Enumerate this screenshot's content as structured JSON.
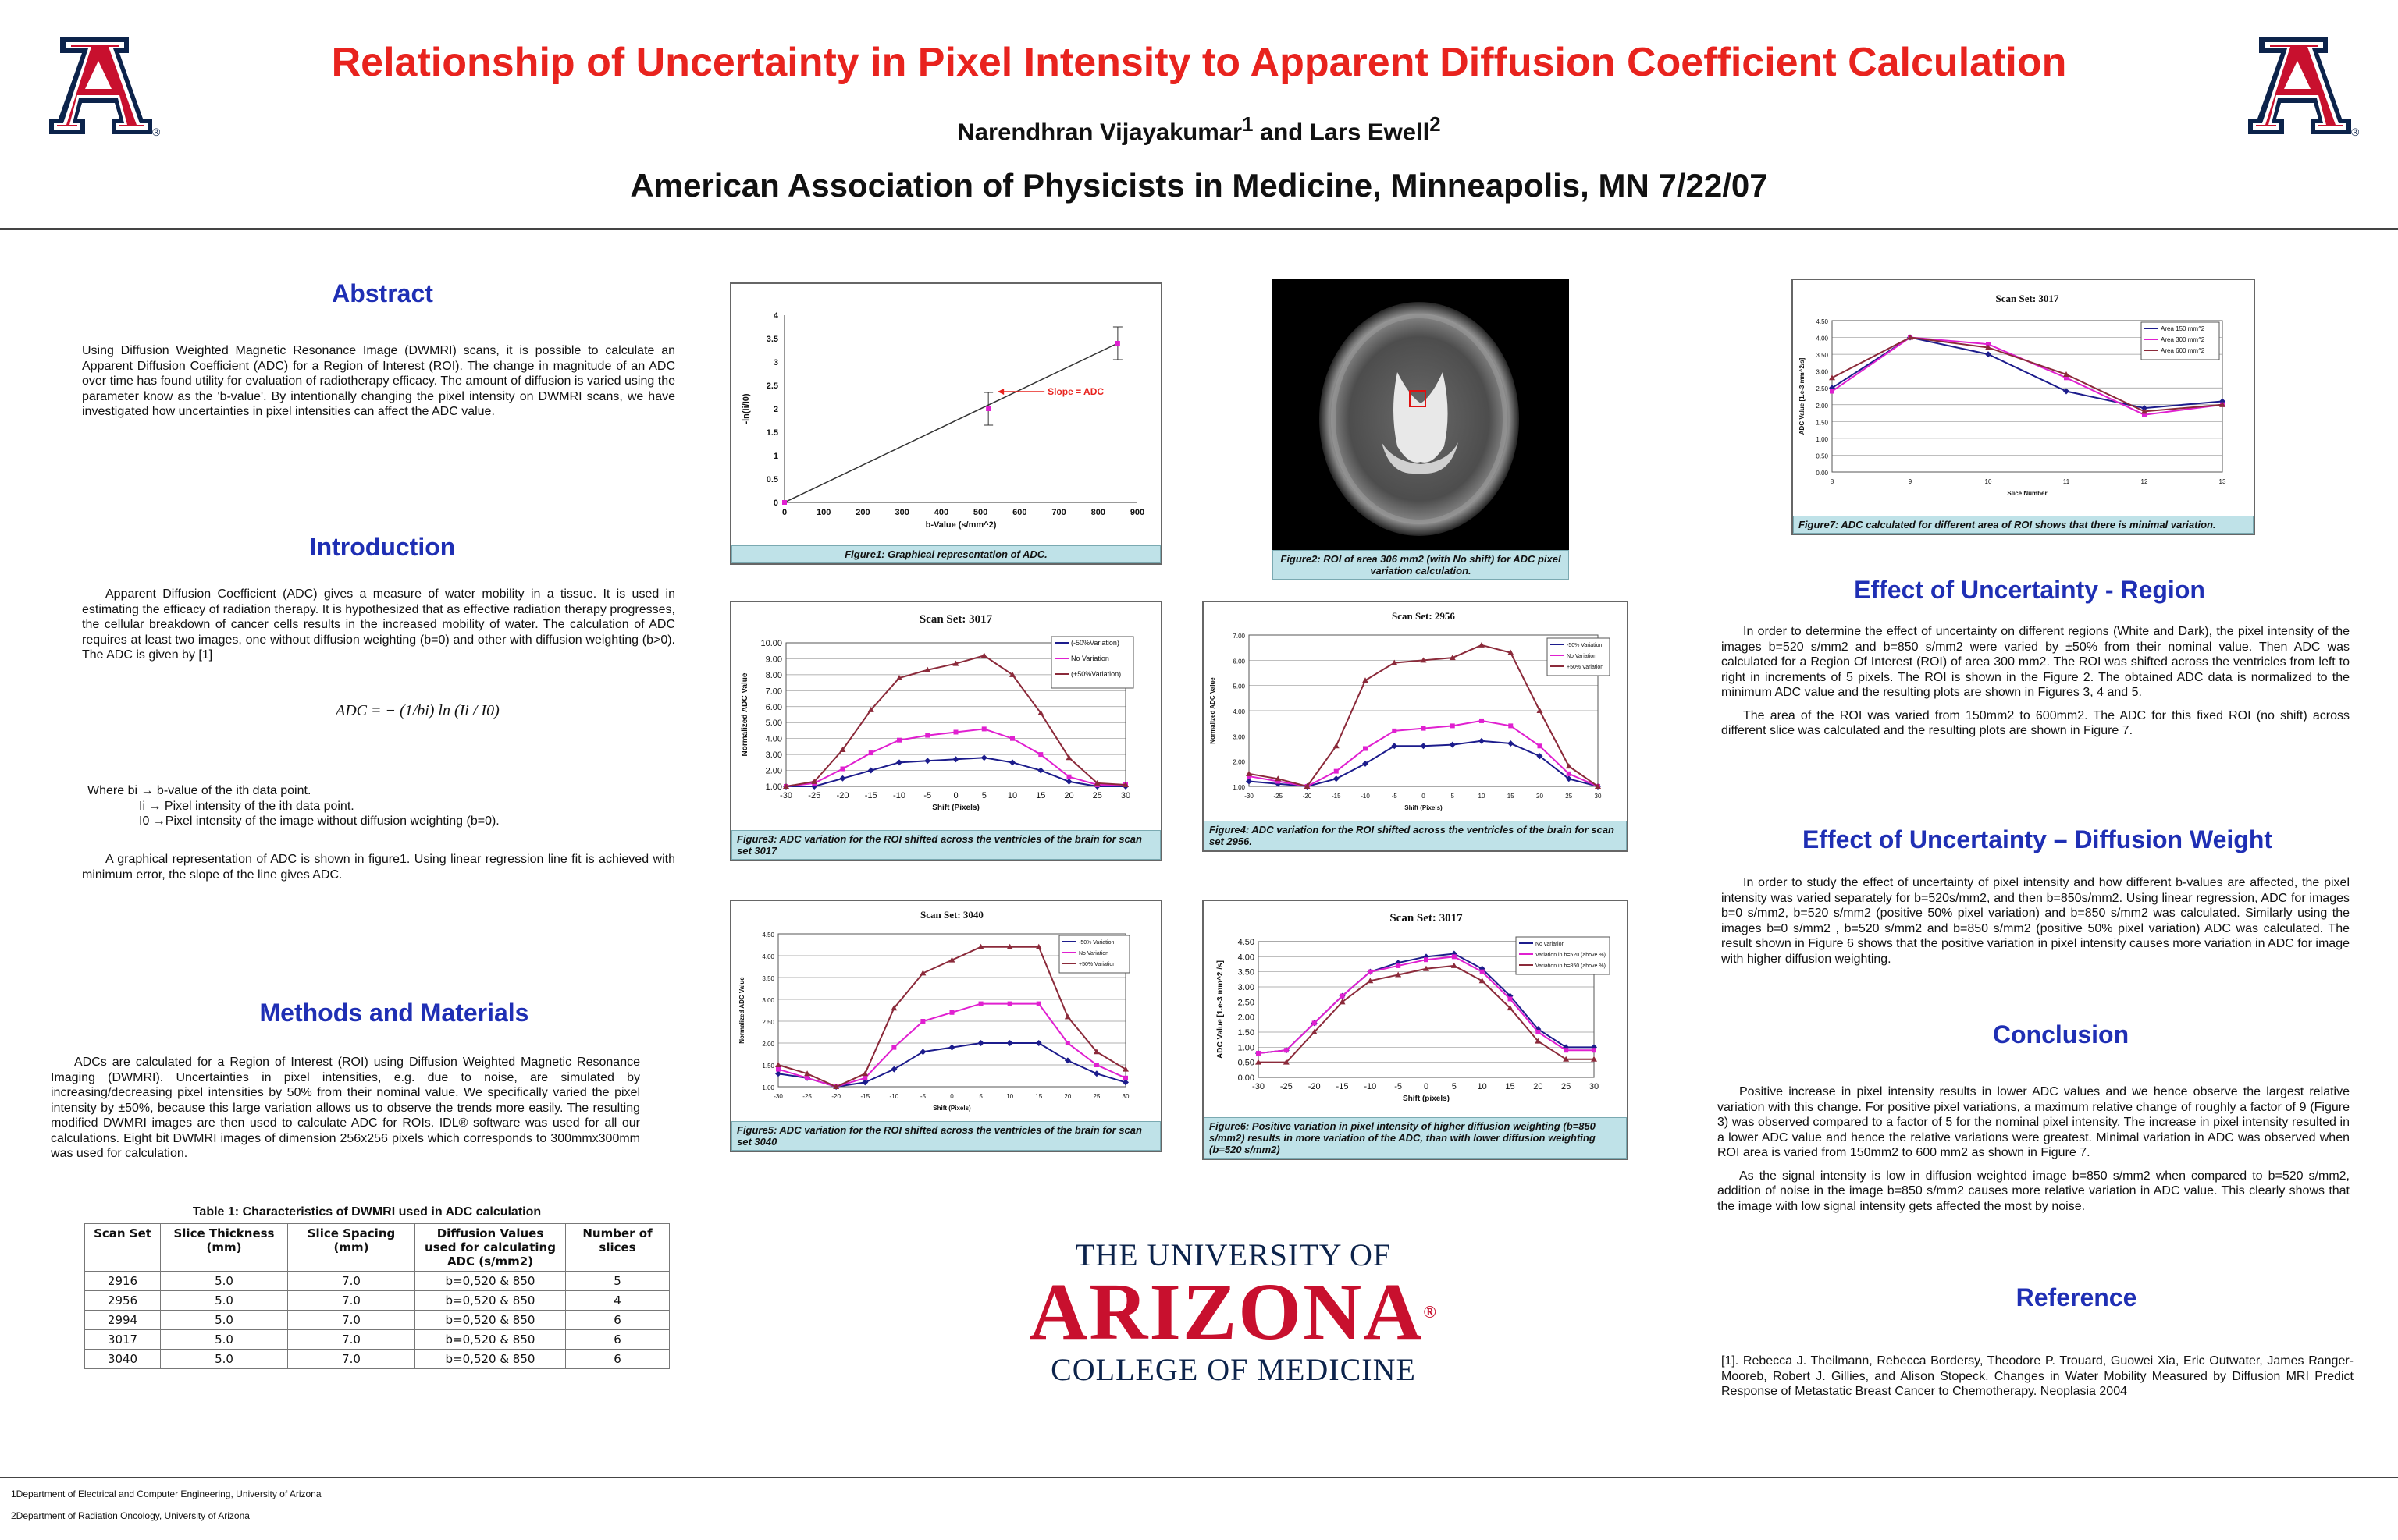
{
  "header": {
    "title": "Relationship of Uncertainty in Pixel Intensity to Apparent Diffusion Coefficient Calculation",
    "authors_a": "Narendhran Vijayakumar",
    "authors_sup1": "1",
    "authors_mid": " and Lars Ewell",
    "authors_sup2": "2",
    "conference": "American Association of Physicists in Medicine, Minneapolis, MN 7/22/07"
  },
  "abstract": {
    "heading": "Abstract",
    "text": "Using Diffusion Weighted Magnetic Resonance Image (DWMRI) scans, it is possible to calculate an Apparent Diffusion Coefficient (ADC) for a Region of Interest (ROI). The change in magnitude of an ADC over time has found utility for evaluation of radiotherapy efficacy. The amount of diffusion is varied using the parameter know as the 'b-value'. By intentionally changing the pixel intensity on DWMRI scans, we have investigated how uncertainties in pixel intensities can affect the ADC value."
  },
  "introduction": {
    "heading": "Introduction",
    "p1": "Apparent Diffusion Coefficient (ADC) gives a measure of water mobility in a tissue. It is used in estimating the efficacy of radiation therapy. It is hypothesized that as effective radiation therapy progresses, the cellular breakdown of cancer cells results in the increased mobility of water. The calculation of ADC requires at least two images, one without diffusion weighting (b=0) and other with diffusion weighting (b>0). The ADC is given by [1]",
    "formula": "ADC = − (1/bi) ln (Ii / I0)",
    "where1": "Where   bi → b-value of the ith data point.",
    "where2": "Ii → Pixel intensity of the ith data point.",
    "where3": "I0 →Pixel intensity of the image without diffusion weighting (b=0).",
    "p2": "A graphical representation of ADC is shown in figure1. Using linear regression line fit is achieved with minimum error, the slope of the line gives ADC."
  },
  "methods": {
    "heading": "Methods and Materials",
    "text": "ADCs are calculated for a Region of Interest (ROI) using Diffusion Weighted Magnetic Resonance Imaging (DWMRI). Uncertainties in pixel intensities, e.g. due to noise, are simulated by increasing/decreasing pixel intensities by 50% from their nominal value. We specifically varied the pixel intensity by ±50%, because this large variation allows us to observe the trends more easily. The resulting modified DWMRI images are then used to calculate ADC for ROIs. IDL® software was used for all our calculations. Eight bit DWMRI images of dimension 256x256 pixels which corresponds to 300mmx300mm was used for calculation.",
    "table_caption": "Table 1: Characteristics of DWMRI used in ADC calculation",
    "table_headers": [
      "Scan Set",
      "Slice Thickness (mm)",
      "Slice Spacing (mm)",
      "Diffusion Values used for calculating ADC (s/mm2)",
      "Number of slices"
    ],
    "table_rows": [
      [
        "2916",
        "5.0",
        "7.0",
        "b=0,520 & 850",
        "5"
      ],
      [
        "2956",
        "5.0",
        "7.0",
        "b=0,520 & 850",
        "4"
      ],
      [
        "2994",
        "5.0",
        "7.0",
        "b=0,520 & 850",
        "6"
      ],
      [
        "3017",
        "5.0",
        "7.0",
        "b=0,520 & 850",
        "6"
      ],
      [
        "3040",
        "5.0",
        "7.0",
        "b=0,520 & 850",
        "6"
      ]
    ]
  },
  "figures": {
    "fig1_caption": "Figure1: Graphical representation of ADC.",
    "fig1_slope_label": "Slope = ADC",
    "fig2_caption": "Figure2: ROI of area 306 mm2 (with No shift) for ADC pixel variation calculation.",
    "fig3_caption": "Figure3:  ADC variation for the ROI shifted across the ventricles of the brain for scan set 3017",
    "fig4_caption": "Figure4:  ADC variation for the ROI shifted across the ventricles of the brain for scan set 2956.",
    "fig5_caption": "Figure5:  ADC variation for the ROI shifted across the ventricles of the brain for scan set 3040",
    "fig6_caption": "Figure6: Positive variation in pixel intensity of higher diffusion weighting (b=850 s/mm2) results in more variation of the ADC, than with lower diffusion weighting (b=520 s/mm2)",
    "fig7_caption": "Figure7: ADC calculated for different area of ROI shows that there is minimal variation."
  },
  "chart_data": [
    {
      "type": "scatter",
      "id": "fig1",
      "xlabel": "b-Value (s/mm^2)",
      "ylabel": "-ln(Ii/I0)",
      "xlim": [
        0,
        900
      ],
      "ylim": [
        0,
        4
      ],
      "xticks": [
        0,
        100,
        200,
        300,
        400,
        500,
        600,
        700,
        800,
        900
      ],
      "yticks": [
        0,
        0.5,
        1,
        1.5,
        2,
        2.5,
        3,
        3.5,
        4
      ],
      "x": [
        0,
        520,
        850
      ],
      "y": [
        0,
        2.0,
        3.4
      ],
      "yerr": [
        0,
        0.35,
        0.35
      ]
    },
    {
      "type": "line",
      "id": "fig3",
      "title": "Scan Set: 3017",
      "xlabel": "Shift (Pixels)",
      "ylabel": "Normalized ADC Value",
      "xlim": [
        -30,
        30
      ],
      "ylim": [
        1,
        10
      ],
      "x": [
        -30,
        -25,
        -20,
        -15,
        -10,
        -5,
        0,
        5,
        10,
        15,
        20,
        25,
        30
      ],
      "series": [
        {
          "name": "(-50%Variation)",
          "color": "#1c1c8c",
          "values": [
            1.0,
            1.0,
            1.5,
            2.0,
            2.5,
            2.6,
            2.7,
            2.8,
            2.5,
            2.0,
            1.3,
            1.0,
            1.0
          ]
        },
        {
          "name": "No Variation",
          "color": "#e020d0",
          "values": [
            1.0,
            1.2,
            2.1,
            3.1,
            3.9,
            4.2,
            4.4,
            4.6,
            4.0,
            3.0,
            1.6,
            1.1,
            1.1
          ]
        },
        {
          "name": "(+50%Variation)",
          "color": "#8b2a3a",
          "values": [
            1.0,
            1.3,
            3.3,
            5.8,
            7.8,
            8.3,
            8.7,
            9.2,
            8.0,
            5.6,
            2.8,
            1.2,
            1.1
          ]
        }
      ]
    },
    {
      "type": "line",
      "id": "fig4",
      "title": "Scan Set: 2956",
      "xlabel": "Shift (Pixels)",
      "ylabel": "Normalized ADC Value",
      "xlim": [
        -30,
        30
      ],
      "ylim": [
        1,
        7
      ],
      "x": [
        -30,
        -25,
        -20,
        -15,
        -10,
        -5,
        0,
        5,
        10,
        15,
        20,
        25,
        30
      ],
      "series": [
        {
          "name": "-50% Variation",
          "color": "#1c1c8c",
          "values": [
            1.2,
            1.1,
            1.0,
            1.3,
            1.9,
            2.6,
            2.6,
            2.65,
            2.8,
            2.7,
            2.2,
            1.3,
            1.0
          ]
        },
        {
          "name": "No Variation",
          "color": "#e020d0",
          "values": [
            1.4,
            1.2,
            1.0,
            1.6,
            2.5,
            3.2,
            3.3,
            3.4,
            3.6,
            3.4,
            2.6,
            1.5,
            1.0
          ]
        },
        {
          "name": "+50% Variation",
          "color": "#8b2a3a",
          "values": [
            1.5,
            1.3,
            1.0,
            2.6,
            5.2,
            5.9,
            6.0,
            6.1,
            6.6,
            6.3,
            4.0,
            1.8,
            1.0
          ]
        }
      ]
    },
    {
      "type": "line",
      "id": "fig5",
      "title": "Scan Set: 3040",
      "xlabel": "Shift (Pixels)",
      "ylabel": "Normalized ADC Value",
      "xlim": [
        -30,
        30
      ],
      "ylim": [
        1,
        4.5
      ],
      "x": [
        -30,
        -25,
        -20,
        -15,
        -10,
        -5,
        0,
        5,
        10,
        15,
        20,
        25,
        30
      ],
      "series": [
        {
          "name": "-50% Variation",
          "color": "#1c1c8c",
          "values": [
            1.3,
            1.2,
            1.0,
            1.1,
            1.4,
            1.8,
            1.9,
            2.0,
            2.0,
            2.0,
            1.6,
            1.3,
            1.1
          ]
        },
        {
          "name": "No Variation",
          "color": "#e020d0",
          "values": [
            1.4,
            1.2,
            1.0,
            1.2,
            1.9,
            2.5,
            2.7,
            2.9,
            2.9,
            2.9,
            2.0,
            1.5,
            1.2
          ]
        },
        {
          "name": "+50% Variation",
          "color": "#8b2a3a",
          "values": [
            1.5,
            1.3,
            1.0,
            1.3,
            2.8,
            3.6,
            3.9,
            4.2,
            4.2,
            4.2,
            2.6,
            1.8,
            1.4
          ]
        }
      ]
    },
    {
      "type": "line",
      "id": "fig6",
      "title": "Scan Set: 3017",
      "xlabel": "Shift (pixels)",
      "ylabel": "ADC Value [1.e-3 mm^2 /s]",
      "xlim": [
        -30,
        30
      ],
      "ylim": [
        0,
        4.5
      ],
      "x": [
        -30,
        -25,
        -20,
        -15,
        -10,
        -5,
        0,
        5,
        10,
        15,
        20,
        25,
        30
      ],
      "series": [
        {
          "name": "No variation",
          "color": "#1c1c8c",
          "values": [
            0.8,
            0.9,
            1.8,
            2.7,
            3.5,
            3.8,
            4.0,
            4.1,
            3.6,
            2.7,
            1.6,
            1.0,
            1.0
          ]
        },
        {
          "name": "Variation in b=520 (above %)",
          "color": "#e020d0",
          "values": [
            0.8,
            0.9,
            1.8,
            2.7,
            3.5,
            3.7,
            3.9,
            4.0,
            3.5,
            2.6,
            1.5,
            0.9,
            0.9
          ]
        },
        {
          "name": "Variation in b=850 (above %)",
          "color": "#8b2a3a",
          "values": [
            0.5,
            0.5,
            1.5,
            2.5,
            3.2,
            3.4,
            3.6,
            3.7,
            3.2,
            2.3,
            1.2,
            0.6,
            0.6
          ]
        }
      ]
    },
    {
      "type": "line",
      "id": "fig7",
      "title": "Scan Set: 3017",
      "xlabel": "Slice Number",
      "ylabel": "ADC Value [1.e-3 mm^2/s]",
      "xlim": [
        8,
        13
      ],
      "ylim": [
        0,
        4.5
      ],
      "x": [
        8,
        9,
        10,
        11,
        12,
        13
      ],
      "series": [
        {
          "name": "Area 150 mm^2",
          "color": "#1c1c8c",
          "values": [
            2.5,
            4.0,
            3.5,
            2.4,
            1.9,
            2.1
          ]
        },
        {
          "name": "Area 300 mm^2",
          "color": "#e020d0",
          "values": [
            2.4,
            4.0,
            3.8,
            2.8,
            1.7,
            2.0
          ]
        },
        {
          "name": "Area 600 mm^2",
          "color": "#8b2a3a",
          "values": [
            2.8,
            4.0,
            3.7,
            2.9,
            1.8,
            2.0
          ]
        }
      ]
    }
  ],
  "effect_region": {
    "heading": "Effect of Uncertainty - Region",
    "p1": "In order to determine the effect of uncertainty on different regions (White and Dark), the pixel intensity of the images b=520 s/mm2 and b=850 s/mm2 were varied by ±50% from their nominal value. Then ADC was calculated for a Region Of Interest (ROI) of area 300 mm2. The ROI was shifted across the ventricles from left to right in increments of 5 pixels. The ROI is shown in the Figure 2. The obtained ADC data is normalized to the minimum ADC value and the resulting plots are shown in Figures 3, 4 and 5.",
    "p2": "The area of the ROI was varied from 150mm2 to 600mm2. The ADC for this fixed ROI (no shift) across different slice was calculated and the resulting plots are shown in Figure 7."
  },
  "effect_weight": {
    "heading": "Effect of Uncertainty – Diffusion Weight",
    "p1": "In order to study the effect of uncertainty of pixel intensity and how different b-values are affected, the pixel intensity was varied separately for b=520s/mm2, and then b=850s/mm2. Using linear regression, ADC for images b=0 s/mm2, b=520 s/mm2 (positive 50% pixel variation) and b=850 s/mm2 was calculated. Similarly using the images b=0 s/mm2 , b=520 s/mm2 and b=850 s/mm2 (positive 50% pixel variation) ADC was calculated. The result shown in Figure 6 shows that the positive variation in pixel intensity causes more variation in ADC for image with higher diffusion weighting."
  },
  "conclusion": {
    "heading": "Conclusion",
    "p1": "Positive increase in pixel intensity results in lower ADC values and we hence observe the largest relative variation with this change. For positive pixel variations, a maximum relative change of roughly a factor of 9 (Figure 3) was observed compared to a factor of 5 for the nominal pixel intensity. The increase in pixel intensity resulted in a lower ADC value and hence the relative variations were greatest. Minimal variation in ADC was observed when ROI area is varied from 150mm2 to 600 mm2 as shown in Figure 7.",
    "p2": "As the signal intensity is low in diffusion weighted image b=850 s/mm2 when compared to b=520 s/mm2, addition of noise in the image b=850 s/mm2 causes more relative variation in ADC value. This clearly shows that the image with low signal intensity gets affected the most by noise."
  },
  "reference": {
    "heading": "Reference",
    "text": "[1].  Rebecca J. Theilmann, Rebecca Bordersy, Theodore P. Trouard, Guowei Xia, Eric Outwater, James Ranger-Mooreb, Robert J. Gillies, and Alison Stopeck. Changes in Water Mobility Measured by Diffusion MRI Predict Response of Metastatic Breast Cancer to Chemotherapy. Neoplasia 2004"
  },
  "logo": {
    "line1": "THE UNIVERSITY OF",
    "line2": "ARIZONA",
    "line3": "COLLEGE OF MEDICINE",
    "mark": "®"
  },
  "footer": {
    "note1": "1Department of Electrical and Computer Engineering, University of Arizona",
    "note2": "2Department of Radiation Oncology, University of Arizona"
  },
  "colors": {
    "title": "#e8231e",
    "heading": "#1f2fb4",
    "caption_bg": "#bfe2e8",
    "ua_red": "#c8102e",
    "ua_blue": "#0c234b"
  }
}
